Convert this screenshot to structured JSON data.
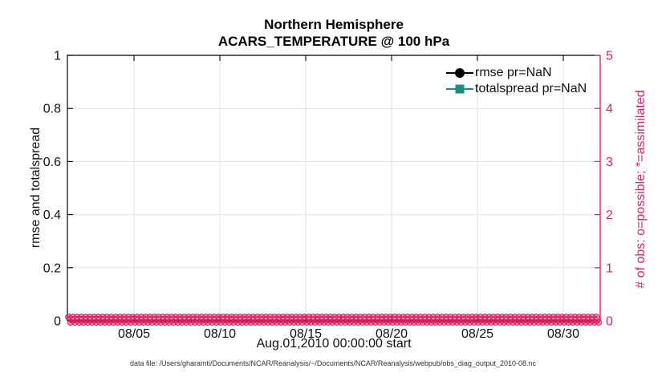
{
  "title": {
    "line1": "Northern Hemisphere",
    "line2": "ACARS_TEMPERATURE @ 100 hPa"
  },
  "legend": {
    "items": [
      {
        "label": "rmse pr=NaN",
        "color": "#000000",
        "marker": "circle"
      },
      {
        "label": "totalspread pr=NaN",
        "color": "#1b8e84",
        "marker": "square"
      }
    ]
  },
  "axes": {
    "left": {
      "label": "rmse and totalspread",
      "color": "#111111"
    },
    "right": {
      "label": "# of obs: o=possible; *=assimilated",
      "color": "#da2464"
    },
    "bottom": {
      "label": "Aug.01,2010 00:00:00 start",
      "color": "#111111"
    }
  },
  "footer": {
    "text": "data file: /Users/gharamti/Documents/NCAR/Reanalysis/~/Documents/NCAR/Reanalysis/webpub/obs_diag_output_2010-08.nc"
  },
  "chart_data": {
    "type": "line",
    "title": "Northern Hemisphere — ACARS_TEMPERATURE @ 100 hPa",
    "xlabel": "Aug.01,2010 00:00:00 start",
    "ylabel_left": "rmse and totalspread",
    "ylabel_right": "# of obs: o=possible; *=assimilated",
    "x_axis": {
      "lim_days": [
        1.12,
        32.15
      ],
      "tick_days": [
        5,
        10,
        15,
        20,
        25,
        30
      ],
      "tick_labels": [
        "08/05",
        "08/10",
        "08/15",
        "08/20",
        "08/25",
        "08/30"
      ]
    },
    "y_left": {
      "lim": [
        0,
        1
      ],
      "ticks": [
        0,
        0.2,
        0.4,
        0.6,
        0.8,
        1
      ],
      "tick_labels": [
        "0",
        "0.2",
        "0.4",
        "0.6",
        "0.8",
        "1"
      ]
    },
    "y_right": {
      "lim": [
        0,
        5
      ],
      "ticks": [
        0,
        1,
        2,
        3,
        4,
        5
      ],
      "tick_labels": [
        "0",
        "1",
        "2",
        "3",
        "4",
        "5"
      ]
    },
    "series": [
      {
        "name": "rmse pr=NaN",
        "color": "#000000",
        "marker": "filled-circle",
        "all_values_nan": true,
        "visible_points": []
      },
      {
        "name": "totalspread pr=NaN",
        "color": "#1b8e84",
        "marker": "filled-square",
        "all_values_nan": true,
        "visible_points": []
      }
    ],
    "obs_counts": {
      "note": "o=possible and *=assimilated observation-count markers, all plotted at 0 along the bottom axis",
      "value_right_axis": 0,
      "start_day": 1.18,
      "end_day": 32.08,
      "interval_days": 0.25,
      "color": "#da2464"
    },
    "grid": {
      "vertical_color": "#e2e2e2",
      "horizontal_color": "#f8d7e3",
      "legend_position": "upper right inside, no box"
    },
    "colors": {
      "right_axis_pink": "#da2464",
      "teal": "#1b8e84",
      "black": "#000000"
    }
  }
}
